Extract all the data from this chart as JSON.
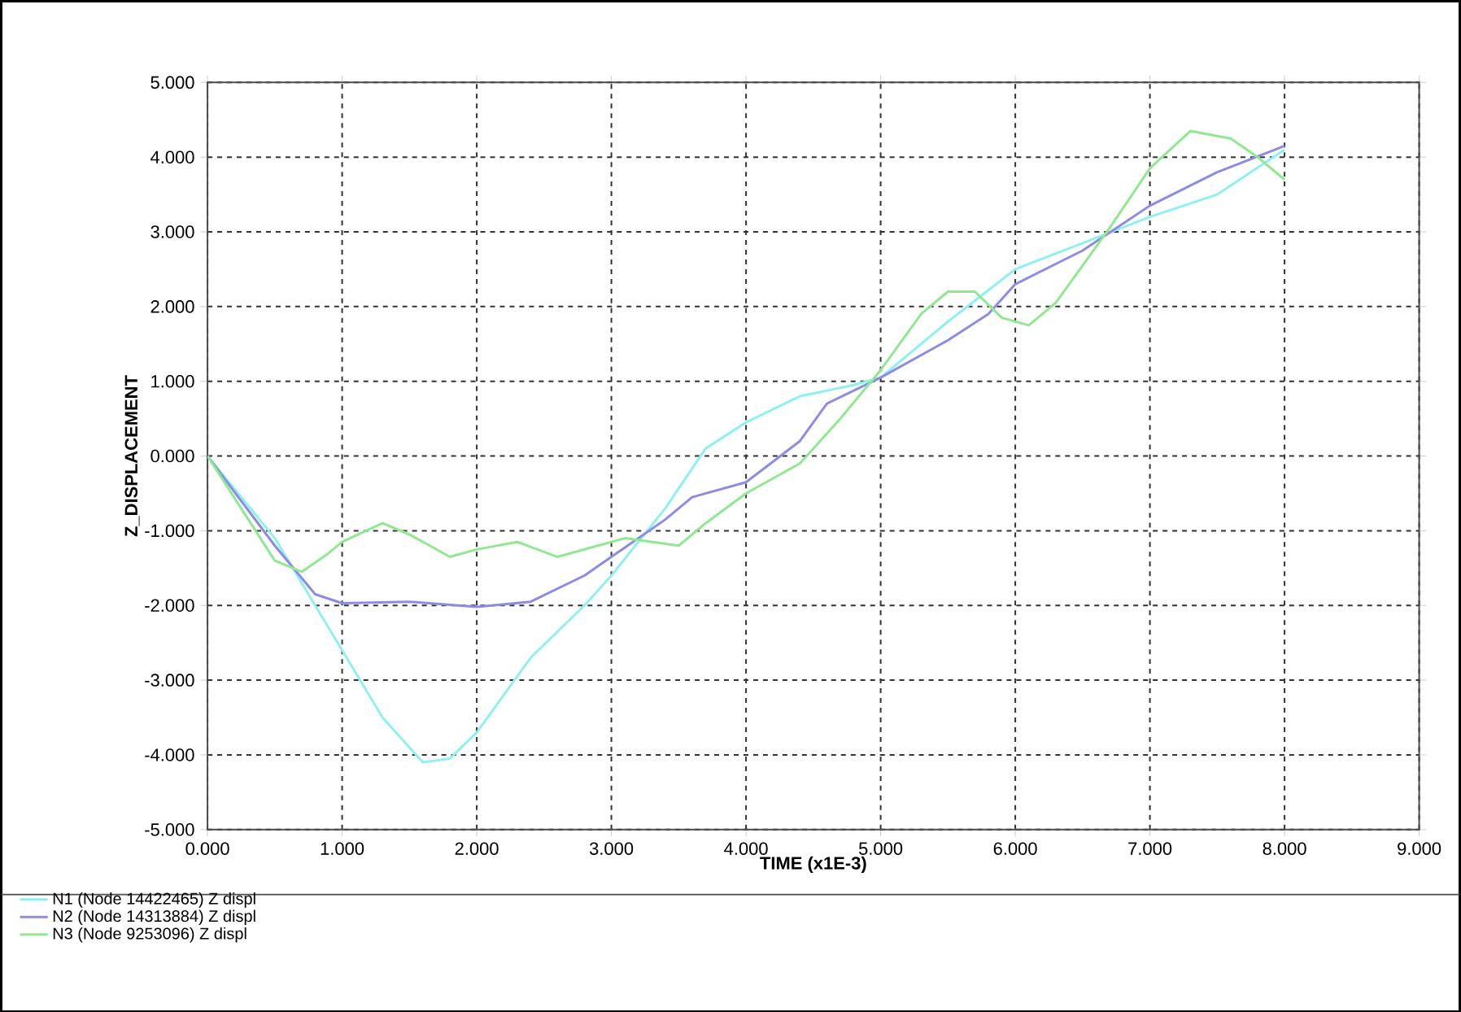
{
  "chart_data": {
    "type": "line",
    "xlabel": "TIME (x1E-3)",
    "ylabel": "Z_DISPLACEMENT",
    "xlim": [
      0,
      9
    ],
    "ylim": [
      -5,
      5
    ],
    "xticks": [
      {
        "value": 0,
        "label": "0.000"
      },
      {
        "value": 1,
        "label": "1.000"
      },
      {
        "value": 2,
        "label": "2.000"
      },
      {
        "value": 3,
        "label": "3.000"
      },
      {
        "value": 4,
        "label": "4.000"
      },
      {
        "value": 5,
        "label": "5.000"
      },
      {
        "value": 6,
        "label": "6.000"
      },
      {
        "value": 7,
        "label": "7.000"
      },
      {
        "value": 8,
        "label": "8.000"
      },
      {
        "value": 9,
        "label": "9.000"
      }
    ],
    "yticks": [
      {
        "value": -5,
        "label": "-5.000"
      },
      {
        "value": -4,
        "label": "-4.000"
      },
      {
        "value": -3,
        "label": "-3.000"
      },
      {
        "value": -2,
        "label": "-2.000"
      },
      {
        "value": -1,
        "label": "-1.000"
      },
      {
        "value": 0,
        "label": "0.000"
      },
      {
        "value": 1,
        "label": "1.000"
      },
      {
        "value": 2,
        "label": "2.000"
      },
      {
        "value": 3,
        "label": "3.000"
      },
      {
        "value": 4,
        "label": "4.000"
      },
      {
        "value": 5,
        "label": "5.000"
      }
    ],
    "grid": true,
    "legend": "bottom",
    "line_style": "solid",
    "series": [
      {
        "name": "N1 (Node 14422465) Z displ",
        "color": "#8ff0f0",
        "x": [
          0,
          0.5,
          1,
          1.3,
          1.6,
          1.8,
          2.0,
          2.4,
          2.8,
          3.0,
          3.4,
          3.7,
          4.0,
          4.4,
          4.8,
          5.0,
          5.5,
          6.0,
          6.5,
          7.0,
          7.5,
          8.0
        ],
        "values": [
          0,
          -1.1,
          -2.6,
          -3.5,
          -4.1,
          -4.05,
          -3.7,
          -2.7,
          -2.0,
          -1.6,
          -0.7,
          0.1,
          0.45,
          0.8,
          0.95,
          1.05,
          1.8,
          2.5,
          2.85,
          3.2,
          3.5,
          4.1
        ]
      },
      {
        "name": "N2 (Node 14313884) Z displ",
        "color": "#8c8ce6",
        "x": [
          0,
          0.5,
          0.8,
          1.0,
          1.5,
          2.0,
          2.4,
          2.8,
          3.0,
          3.4,
          3.6,
          4.0,
          4.4,
          4.6,
          5.0,
          5.5,
          5.8,
          6.0,
          6.5,
          7.0,
          7.5,
          8.0
        ],
        "values": [
          0,
          -1.2,
          -1.85,
          -1.97,
          -1.95,
          -2.02,
          -1.95,
          -1.6,
          -1.35,
          -0.85,
          -0.55,
          -0.35,
          0.2,
          0.7,
          1.05,
          1.55,
          1.9,
          2.3,
          2.75,
          3.35,
          3.8,
          4.15
        ]
      },
      {
        "name": "N3 (Node 9253096) Z displ",
        "color": "#90e890",
        "x": [
          0,
          0.5,
          0.7,
          0.9,
          1.0,
          1.3,
          1.5,
          1.8,
          2.0,
          2.3,
          2.6,
          2.9,
          3.1,
          3.5,
          3.7,
          4.0,
          4.4,
          4.7,
          5.0,
          5.3,
          5.5,
          5.7,
          5.9,
          6.1,
          6.3,
          6.7,
          7.0,
          7.3,
          7.6,
          7.8,
          8.0
        ],
        "values": [
          0,
          -1.4,
          -1.55,
          -1.3,
          -1.15,
          -0.9,
          -1.05,
          -1.35,
          -1.25,
          -1.15,
          -1.35,
          -1.2,
          -1.1,
          -1.2,
          -0.9,
          -0.5,
          -0.1,
          0.5,
          1.15,
          1.9,
          2.2,
          2.2,
          1.85,
          1.75,
          2.05,
          3.05,
          3.85,
          4.35,
          4.25,
          4.0,
          3.7
        ]
      }
    ]
  }
}
